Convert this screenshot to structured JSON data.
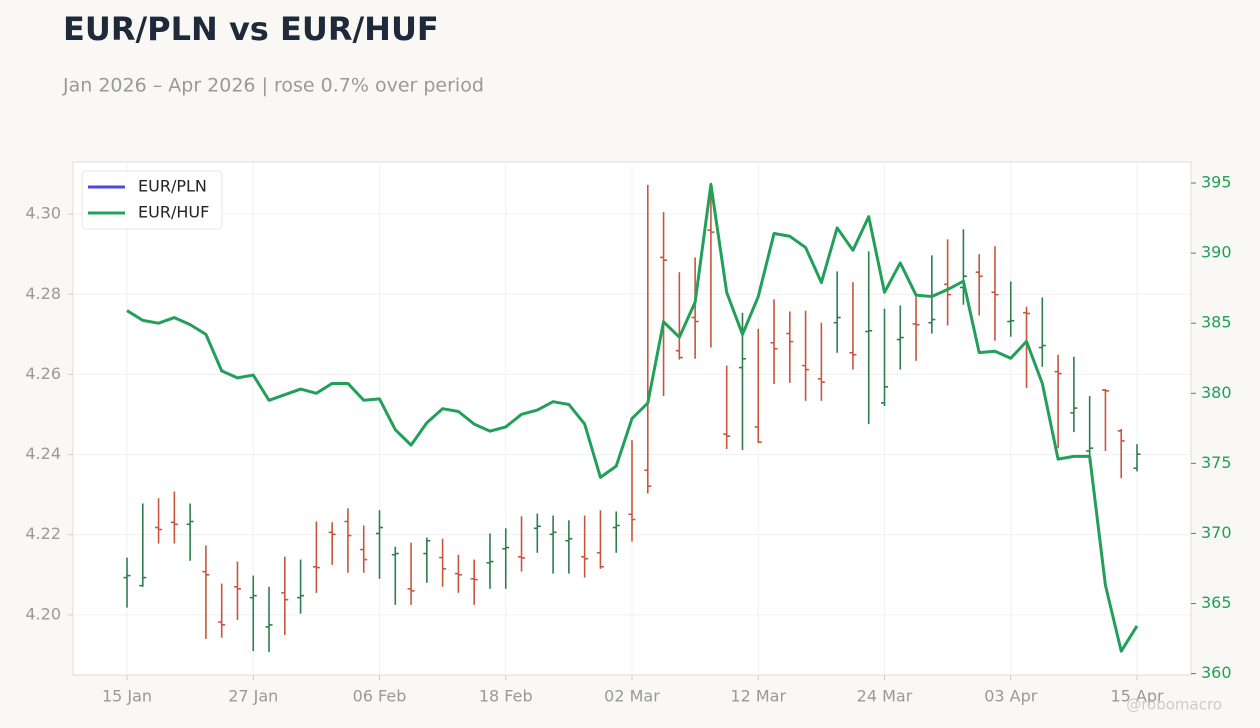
{
  "chart_data": {
    "type": "ohlc",
    "title": "EUR/PLN vs EUR/HUF",
    "subtitle": "Jan 2026 – Apr 2026 | rose 0.7% over period",
    "watermark": "@robomacro",
    "categories": [
      "15 Jan",
      null,
      null,
      null,
      null,
      null,
      null,
      null,
      "27 Jan",
      null,
      null,
      null,
      null,
      null,
      null,
      null,
      "06 Feb",
      null,
      null,
      null,
      null,
      null,
      null,
      null,
      "18 Feb",
      null,
      null,
      null,
      null,
      null,
      null,
      null,
      "02 Mar",
      null,
      null,
      null,
      null,
      null,
      null,
      null,
      "12 Mar",
      null,
      null,
      null,
      null,
      null,
      null,
      null,
      "24 Mar",
      null,
      null,
      null,
      null,
      null,
      null,
      null,
      "03 Apr",
      null,
      null,
      null,
      null,
      null,
      null,
      null,
      "15 Apr"
    ],
    "ylim": [
      4.185,
      4.313
    ],
    "yticks": [
      {
        "value": 4.2,
        "label": "4.20"
      },
      {
        "value": 4.22,
        "label": "4.22"
      },
      {
        "value": 4.24,
        "label": "4.24"
      },
      {
        "value": 4.26,
        "label": "4.26"
      },
      {
        "value": 4.28,
        "label": "4.28"
      },
      {
        "value": 4.3,
        "label": "4.30"
      }
    ],
    "y2lim": [
      359.9,
      396.5
    ],
    "y2ticks": [
      360,
      365,
      370,
      375,
      380,
      385,
      390,
      395
    ],
    "y2_color": "#22a05a",
    "grid": true,
    "legend": "upper left",
    "up_color": "#2e7d4f",
    "down_color": "#c8553d",
    "series": [
      {
        "name": "EUR/PLN",
        "color": "#4f46e5",
        "open": [
          4.2093,
          4.2073,
          4.2218,
          4.2231,
          4.2226,
          4.2108,
          4.1982,
          4.207,
          4.2043,
          4.197,
          4.2055,
          4.2043,
          4.212,
          4.2206,
          4.2233,
          4.2163,
          4.2203,
          4.215,
          4.2065,
          4.2153,
          4.2143,
          4.2103,
          4.209,
          4.213,
          4.2165,
          4.2145,
          4.2216,
          4.2201,
          4.2185,
          4.2145,
          4.2155,
          4.2218,
          4.2251,
          4.2361,
          4.2892,
          4.2659,
          4.2742,
          4.296,
          4.2451,
          4.2617,
          4.2469,
          4.2679,
          4.2702,
          4.2622,
          4.2589,
          4.2729,
          4.2654,
          4.2707,
          4.2529,
          4.2687,
          4.2726,
          4.2729,
          4.2825,
          4.2817,
          4.2855,
          4.2805,
          4.2732,
          4.2754,
          4.2667,
          4.2607,
          4.2504,
          4.2409,
          4.2561,
          4.2459,
          4.2366
        ],
        "high": [
          4.2143,
          4.2278,
          4.2291,
          4.2308,
          4.2278,
          4.2173,
          4.2078,
          4.2133,
          4.2098,
          4.207,
          4.2145,
          4.2138,
          4.2233,
          4.2231,
          4.2266,
          4.2223,
          4.2261,
          4.217,
          4.218,
          4.2193,
          4.219,
          4.215,
          4.2138,
          4.2203,
          4.2216,
          4.2246,
          4.2253,
          4.2248,
          4.2236,
          4.2248,
          4.2261,
          4.2258,
          4.2436,
          4.3073,
          4.3005,
          4.2855,
          4.2892,
          4.3078,
          4.2622,
          4.2754,
          4.2714,
          4.2787,
          4.2757,
          4.2759,
          4.2729,
          4.2857,
          4.283,
          4.2907,
          4.2764,
          4.2772,
          4.2794,
          4.2897,
          4.2937,
          4.2962,
          4.29,
          4.292,
          4.2832,
          4.2769,
          4.2792,
          4.2649,
          4.2644,
          4.2546,
          4.2564,
          4.2464,
          4.2426
        ],
        "low": [
          4.2018,
          4.207,
          4.2178,
          4.2178,
          4.2135,
          4.194,
          4.1943,
          4.1987,
          4.191,
          4.1907,
          4.195,
          4.2003,
          4.2055,
          4.2125,
          4.2105,
          4.2105,
          4.209,
          4.2025,
          4.2025,
          4.208,
          4.207,
          4.2055,
          4.2025,
          4.2065,
          4.2065,
          4.2108,
          4.2155,
          4.2103,
          4.2103,
          4.2093,
          4.2115,
          4.2155,
          4.2183,
          4.2303,
          4.2546,
          4.2637,
          4.2639,
          4.2667,
          4.2414,
          4.2411,
          4.2429,
          4.2576,
          4.2579,
          4.2534,
          4.2534,
          4.2654,
          4.2612,
          4.2476,
          4.2521,
          4.2612,
          4.2634,
          4.2702,
          4.2722,
          4.2774,
          4.2747,
          4.2684,
          4.2694,
          4.2566,
          4.2619,
          4.2416,
          4.2456,
          4.2378,
          4.2409,
          4.2341,
          4.2358
        ],
        "close": [
          4.2098,
          4.2093,
          4.2213,
          4.2226,
          4.2233,
          4.21,
          4.1975,
          4.2065,
          4.2048,
          4.1975,
          4.2038,
          4.2048,
          4.2118,
          4.2201,
          4.2198,
          4.2138,
          4.2218,
          4.2153,
          4.206,
          4.2185,
          4.2115,
          4.21,
          4.2088,
          4.2133,
          4.2168,
          4.2142,
          4.2221,
          4.2206,
          4.219,
          4.214,
          4.212,
          4.2223,
          4.2238,
          4.2321,
          4.2885,
          4.2642,
          4.2732,
          4.2955,
          4.2446,
          4.2639,
          4.2431,
          4.2664,
          4.2682,
          4.2612,
          4.2581,
          4.2742,
          4.2649,
          4.2709,
          4.2569,
          4.2692,
          4.2724,
          4.2737,
          4.2799,
          4.2845,
          4.2845,
          4.2799,
          4.2734,
          4.2752,
          4.2672,
          4.2602,
          4.2516,
          4.2416,
          4.2559,
          4.2434,
          4.2401
        ]
      },
      {
        "name": "EUR/HUF",
        "color": "#22a05a",
        "axis": "y2",
        "values": [
          385.9,
          385.2,
          385.0,
          385.4,
          384.9,
          384.2,
          381.6,
          381.1,
          381.3,
          379.5,
          379.9,
          380.3,
          380.0,
          380.7,
          380.7,
          379.5,
          379.6,
          377.4,
          376.3,
          377.9,
          378.9,
          378.7,
          377.8,
          377.3,
          377.6,
          378.5,
          378.8,
          379.4,
          379.2,
          377.8,
          374.0,
          374.8,
          378.2,
          379.3,
          385.1,
          384.0,
          386.5,
          394.9,
          387.2,
          384.2,
          386.9,
          391.4,
          391.2,
          390.4,
          387.9,
          391.8,
          390.2,
          392.6,
          387.2,
          389.3,
          387.0,
          386.9,
          387.4,
          388.0,
          382.9,
          383.0,
          382.5,
          383.7,
          380.7,
          375.3,
          375.5,
          375.5,
          366.3,
          361.6,
          363.4
        ]
      }
    ]
  }
}
